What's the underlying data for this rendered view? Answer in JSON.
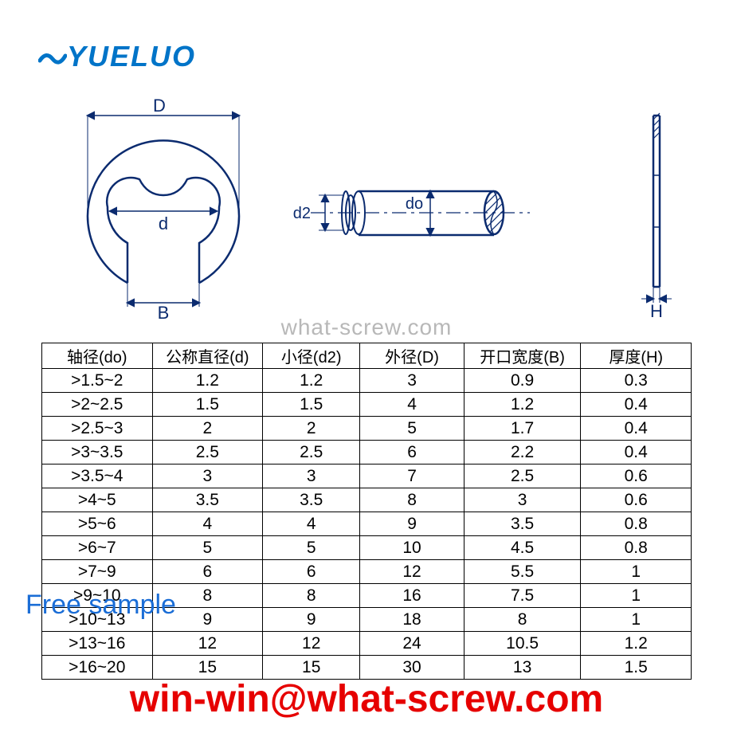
{
  "brand": {
    "name": "YUELUO"
  },
  "watermark": {
    "center": "what-screw.com"
  },
  "overlays": {
    "free_sample": "Free sample",
    "email": "win-win@what-screw.com"
  },
  "diagram": {
    "labels": {
      "D": "D",
      "d": "d",
      "B": "B",
      "d2": "d2",
      "do": "do",
      "H": "H"
    },
    "colors": {
      "stroke": "#0b2b6f",
      "hatch": "#0b2b6f",
      "text": "#0b2b6f"
    }
  },
  "table": {
    "columns": [
      "轴径(do)",
      "公称直径(d)",
      "小径(d2)",
      "外径(D)",
      "开口宽度(B)",
      "厚度(H)"
    ],
    "rows": [
      [
        ">1.5~2",
        "1.2",
        "1.2",
        "3",
        "0.9",
        "0.3"
      ],
      [
        ">2~2.5",
        "1.5",
        "1.5",
        "4",
        "1.2",
        "0.4"
      ],
      [
        ">2.5~3",
        "2",
        "2",
        "5",
        "1.7",
        "0.4"
      ],
      [
        ">3~3.5",
        "2.5",
        "2.5",
        "6",
        "2.2",
        "0.4"
      ],
      [
        ">3.5~4",
        "3",
        "3",
        "7",
        "2.5",
        "0.6"
      ],
      [
        ">4~5",
        "3.5",
        "3.5",
        "8",
        "3",
        "0.6"
      ],
      [
        ">5~6",
        "4",
        "4",
        "9",
        "3.5",
        "0.8"
      ],
      [
        ">6~7",
        "5",
        "5",
        "10",
        "4.5",
        "0.8"
      ],
      [
        ">7~9",
        "6",
        "6",
        "12",
        "5.5",
        "1"
      ],
      [
        ">9~10",
        "8",
        "8",
        "16",
        "7.5",
        "1"
      ],
      [
        ">10~13",
        "9",
        "9",
        "18",
        "8",
        "1"
      ],
      [
        ">13~16",
        "12",
        "12",
        "24",
        "10.5",
        "1.2"
      ],
      [
        ">16~20",
        "15",
        "15",
        "30",
        "13",
        "1.5"
      ]
    ],
    "col_widths_pct": [
      17,
      17,
      15,
      16,
      18,
      17
    ],
    "border_color": "#000000",
    "text_color": "#000000",
    "font_size": 21
  },
  "colors": {
    "brand_blue": "#0074c8",
    "link_blue": "#1a6dd6",
    "red": "#e60000",
    "watermark_gray": "#b8b8b8",
    "diagram_blue": "#0b2b6f"
  }
}
